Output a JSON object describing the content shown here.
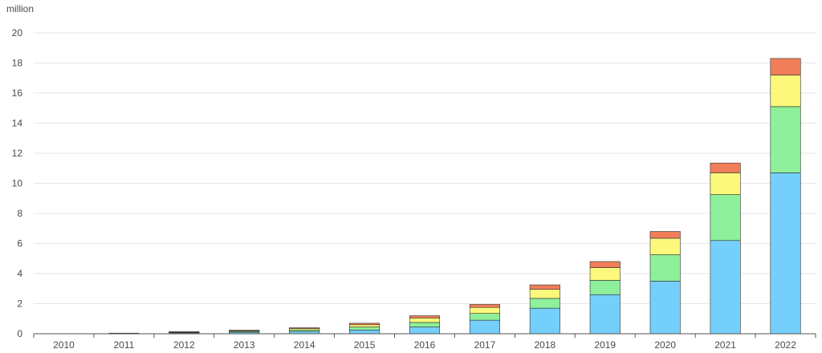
{
  "chart_data": {
    "type": "bar",
    "stacked": true,
    "unit_label": "million",
    "categories": [
      "2010",
      "2011",
      "2012",
      "2013",
      "2014",
      "2015",
      "2016",
      "2017",
      "2018",
      "2019",
      "2020",
      "2021",
      "2022"
    ],
    "series": [
      {
        "color": "#74cffb",
        "values": [
          0.0,
          0.03,
          0.06,
          0.1,
          0.15,
          0.25,
          0.45,
          0.9,
          1.7,
          2.6,
          3.5,
          6.2,
          10.7
        ]
      },
      {
        "color": "#8ef09a",
        "values": [
          0.0,
          0.01,
          0.04,
          0.06,
          0.1,
          0.2,
          0.3,
          0.45,
          0.65,
          0.95,
          1.75,
          3.05,
          4.4
        ]
      },
      {
        "color": "#fbf87c",
        "values": [
          0.0,
          0.0,
          0.02,
          0.05,
          0.1,
          0.15,
          0.3,
          0.4,
          0.6,
          0.85,
          1.1,
          1.45,
          2.1
        ]
      },
      {
        "color": "#f07e58",
        "values": [
          0.0,
          0.0,
          0.02,
          0.03,
          0.05,
          0.1,
          0.15,
          0.2,
          0.3,
          0.4,
          0.45,
          0.65,
          1.1
        ]
      }
    ],
    "ylim": [
      0,
      20
    ],
    "yticks": [
      0,
      2,
      4,
      6,
      8,
      10,
      12,
      14,
      16,
      18,
      20
    ],
    "grid": true,
    "legend": "none"
  }
}
